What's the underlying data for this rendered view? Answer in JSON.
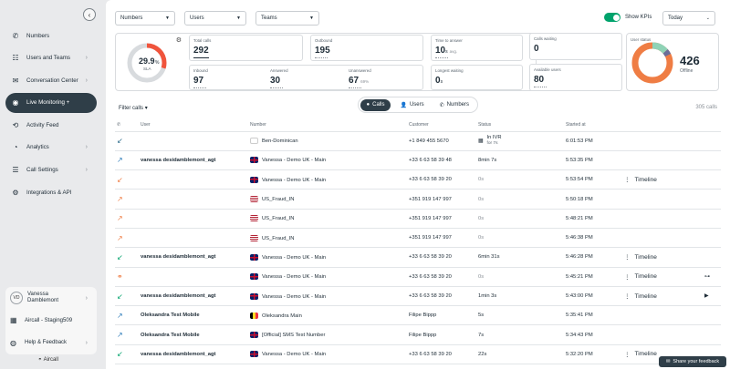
{
  "sidebar": {
    "items": [
      {
        "label": "Numbers",
        "icon": "phone-icon",
        "chevron": false
      },
      {
        "label": "Users and Teams",
        "icon": "users-icon",
        "chevron": true
      },
      {
        "label": "Conversation Center",
        "icon": "chat-icon",
        "chevron": true
      },
      {
        "label": "Live Monitoring +",
        "icon": "live-icon",
        "chevron": false,
        "active": true
      },
      {
        "label": "Activity Feed",
        "icon": "activity-icon",
        "chevron": false
      },
      {
        "label": "Analytics",
        "icon": "analytics-icon",
        "chevron": true
      },
      {
        "label": "Call Settings",
        "icon": "settings-icon",
        "chevron": true
      },
      {
        "label": "Integrations & API",
        "icon": "integrations-icon",
        "chevron": false
      }
    ],
    "account": {
      "avatar_initials": "VD",
      "user_name_line1": "Vanessa",
      "user_name_line2": "Damblemont",
      "workspace": "Aircall - Staging509",
      "help": "Help & Feedback"
    },
    "brand": "Aircall"
  },
  "filters": {
    "numbers": "Numbers",
    "users": "Users",
    "teams": "Teams",
    "show_kpis_label": "Show KPIs",
    "period": "Today"
  },
  "kpis": {
    "sla_value": "29.9",
    "sla_unit": "%",
    "sla_label": "SLA",
    "sla_fraction": 0.299,
    "total_calls_label": "Total calls",
    "total_calls": "292",
    "outbound_label": "Outbound",
    "outbound": "195",
    "time_to_answer_label": "Time to answer",
    "time_to_answer": "10",
    "time_to_answer_unit": "s",
    "time_to_answer_sub": "avg.",
    "calls_waiting_label": "Calls waiting",
    "calls_waiting": "0",
    "inbound_label": "Inbound",
    "inbound": "97",
    "answered_label": "Answered",
    "answered": "30",
    "unanswered_label": "Unanswered",
    "unanswered": "67",
    "unanswered_sub": "69%",
    "longest_waiting_label": "Longest waiting",
    "longest_waiting": "0",
    "longest_waiting_unit": "s",
    "available_users_label": "Available users",
    "available_users": "80"
  },
  "user_status": {
    "label": "User status",
    "count": "426",
    "count_label": "Offline",
    "colors": {
      "offline": "#ef7d44",
      "available": "#8fd3b6",
      "busy": "#6b6f9a"
    }
  },
  "toolbar": {
    "filter_calls": "Filter calls",
    "tab_calls": "Calls",
    "tab_users": "Users",
    "tab_numbers": "Numbers",
    "count": "305 calls"
  },
  "table": {
    "headers": {
      "user": "User",
      "number": "Number",
      "customer": "Customer",
      "status": "Status",
      "started": "Started at"
    },
    "rows": [
      {
        "dir": "in",
        "user": "",
        "flag": "dom",
        "number": "Ben-Dominican",
        "customer": "+1 849 455 5670",
        "status": "In IVR",
        "status_sub": "for 7s",
        "started": "6:01:53 PM",
        "timeline": "",
        "extra": ""
      },
      {
        "dir": "out",
        "user": "vanessa desidamblemont_agt",
        "flag": "uk",
        "number": "Vanessa - Demo UK - Main",
        "customer": "+33 6 63 58 39 48",
        "status": "8min 7s",
        "status_sub": "",
        "started": "5:53:35 PM",
        "timeline": "",
        "extra": ""
      },
      {
        "dir": "missed",
        "user": "",
        "flag": "uk",
        "number": "Vanessa - Demo UK - Main",
        "customer": "+33 6 63 58 39 20",
        "status": "0s",
        "status_sub": "",
        "started": "5:53:54 PM",
        "timeline": "Timeline",
        "extra": ""
      },
      {
        "dir": "out-orange",
        "user": "",
        "flag": "us",
        "number": "US_Fraud_IN",
        "customer": "+351 919 147 997",
        "status": "0s",
        "status_sub": "",
        "started": "5:50:18 PM",
        "timeline": "",
        "extra": ""
      },
      {
        "dir": "out-orange",
        "user": "",
        "flag": "us",
        "number": "US_Fraud_IN",
        "customer": "+351 919 147 997",
        "status": "0s",
        "status_sub": "",
        "started": "5:48:21 PM",
        "timeline": "",
        "extra": ""
      },
      {
        "dir": "out-orange",
        "user": "",
        "flag": "us",
        "number": "US_Fraud_IN",
        "customer": "+351 919 147 997",
        "status": "0s",
        "status_sub": "",
        "started": "5:46:38 PM",
        "timeline": "",
        "extra": ""
      },
      {
        "dir": "in-green",
        "user": "vanessa desidamblemont_agt",
        "flag": "uk",
        "number": "Vanessa - Demo UK - Main",
        "customer": "+33 6 63 58 39 20",
        "status": "6min 31s",
        "status_sub": "",
        "started": "5:46:28 PM",
        "timeline": "Timeline",
        "extra": ""
      },
      {
        "dir": "voicemail",
        "user": "",
        "flag": "uk",
        "number": "Vanessa - Demo UK - Main",
        "customer": "+33 6 63 58 39 20",
        "status": "0s",
        "status_sub": "",
        "started": "5:45:21 PM",
        "timeline": "Timeline",
        "extra": "link"
      },
      {
        "dir": "in-green",
        "user": "vanessa desidamblemont_agt",
        "flag": "uk",
        "number": "Vanessa - Demo UK - Main",
        "customer": "+33 6 63 58 39 20",
        "status": "1min 3s",
        "status_sub": "",
        "started": "5:43:00 PM",
        "timeline": "Timeline",
        "extra": "play"
      },
      {
        "dir": "out",
        "user": "Oleksandra Test Mobile",
        "flag": "be",
        "number": "Oleksandra Main",
        "customer": "Filipe Bippp",
        "status": "5s",
        "status_sub": "",
        "started": "5:35:41 PM",
        "timeline": "",
        "extra": ""
      },
      {
        "dir": "out",
        "user": "Oleksandra Test Mobile",
        "flag": "uk",
        "number": "[Official] SMS Test Number",
        "customer": "Filipe Bippp",
        "status": "7s",
        "status_sub": "",
        "started": "5:34:43 PM",
        "timeline": "",
        "extra": ""
      },
      {
        "dir": "in-green",
        "user": "vanessa desidamblemont_agt",
        "flag": "uk",
        "number": "Vanessa - Demo UK - Main",
        "customer": "+33 6 63 58 39 20",
        "status": "22s",
        "status_sub": "",
        "started": "5:32:20 PM",
        "timeline": "Timeline",
        "extra": ""
      }
    ]
  },
  "feedback_label": "Share your feedback"
}
